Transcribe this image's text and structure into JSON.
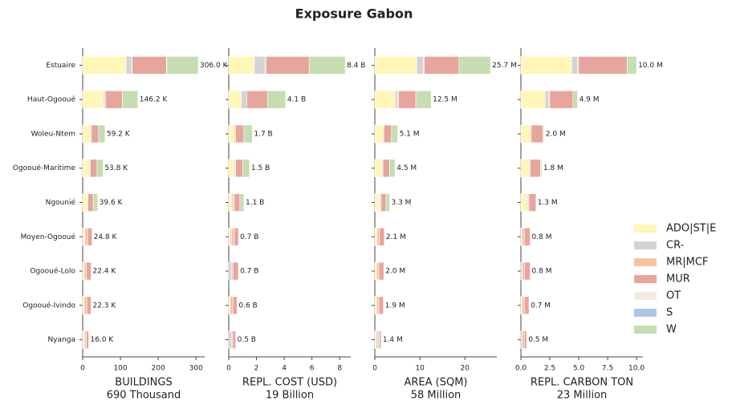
{
  "chart_data": {
    "type": "bar",
    "title": "Exposure Gabon",
    "legend": "right",
    "categories": [
      "Estuaire",
      "Haut-Ogooué",
      "Woleu-Ntem",
      "Ogooué-Maritime",
      "Ngounié",
      "Moyen-Ogooué",
      "Ogooué-Lolo",
      "Ogooué-Ivindo",
      "Nyanga"
    ],
    "series": [
      {
        "name": "ADO|ST|E",
        "color": "#fff6b8"
      },
      {
        "name": "CR-",
        "color": "#d1d3d6"
      },
      {
        "name": "MR|MCF",
        "color": "#f6c3a0"
      },
      {
        "name": "MUR",
        "color": "#e6a59d"
      },
      {
        "name": "OT",
        "color": "#f2ebdf"
      },
      {
        "name": "S",
        "color": "#b0c4e6"
      },
      {
        "name": "W",
        "color": "#c6ddb1"
      }
    ],
    "panels": [
      {
        "xlabel": "BUILDINGS",
        "xlabel_sub": "690 Thousand",
        "xlim": [
          0,
          323
        ],
        "xticks": [
          0,
          100,
          200,
          300
        ],
        "values": [
          306.0,
          146.2,
          59.2,
          53.8,
          39.6,
          24.8,
          22.4,
          22.3,
          16.0
        ],
        "value_labels": [
          "306.0 K",
          "146.2 K",
          "59.2 K",
          "53.8 K",
          "39.6 K",
          "24.8 K",
          "22.4 K",
          "22.3 K",
          "16.0 K"
        ],
        "series": [
          {
            "values": [
              115,
              55,
              21,
              18,
              12,
              5,
              4,
              4,
              3
            ]
          },
          {
            "values": [
              15,
              3,
              0,
              2,
              0,
              1,
              0,
              0,
              3
            ]
          },
          {
            "values": [
              1,
              2,
              2,
              0,
              2,
              7,
              6,
              7,
              4
            ]
          },
          {
            "values": [
              91,
              45,
              19,
              18,
              14,
              11.8,
              12.4,
              11.3,
              6
            ]
          },
          {
            "values": [
              1,
              0,
              0,
              0,
              0,
              0,
              0,
              0,
              0
            ]
          },
          {
            "values": [
              0,
              0,
              0,
              0,
              0,
              0,
              0,
              0,
              0
            ]
          },
          {
            "values": [
              83,
              41.2,
              17.2,
              15.8,
              11.6,
              0,
              0,
              0,
              0
            ]
          }
        ]
      },
      {
        "xlabel": "REPL. COST (USD)",
        "xlabel_sub": "19 Billion",
        "xlim": [
          0,
          8.8
        ],
        "xticks": [
          0,
          2,
          4,
          6,
          8
        ],
        "values": [
          8.4,
          4.1,
          1.7,
          1.5,
          1.1,
          0.7,
          0.7,
          0.6,
          0.5
        ],
        "value_labels": [
          "8.4 B",
          "4.1 B",
          "1.7 B",
          "1.5 B",
          "1.1 B",
          "0.7 B",
          "0.7 B",
          "0.6 B",
          "0.5 B"
        ],
        "series": [
          {
            "values": [
              1.85,
              0.9,
              0.4,
              0.4,
              0.2,
              0.1,
              0,
              0.1,
              0
            ]
          },
          {
            "values": [
              0.75,
              0.4,
              0,
              0.1,
              0.1,
              0.1,
              0.2,
              0,
              0.2
            ]
          },
          {
            "values": [
              0.1,
              0,
              0.1,
              0,
              0.1,
              0.2,
              0.1,
              0.2,
              0.1
            ]
          },
          {
            "values": [
              3.1,
              1.5,
              0.6,
              0.5,
              0.4,
              0.3,
              0.4,
              0.3,
              0.2
            ]
          },
          {
            "values": [
              0,
              0,
              0,
              0,
              0,
              0,
              0,
              0,
              0
            ]
          },
          {
            "values": [
              0,
              0,
              0,
              0,
              0,
              0,
              0,
              0,
              0
            ]
          },
          {
            "values": [
              2.6,
              1.3,
              0.6,
              0.5,
              0.3,
              0,
              0,
              0,
              0
            ]
          }
        ]
      },
      {
        "xlabel": "AREA (SQM)",
        "xlabel_sub": "58 Million",
        "xlim": [
          0,
          27.1
        ],
        "xticks": [
          0,
          10,
          20
        ],
        "values": [
          25.7,
          12.5,
          5.1,
          4.5,
          3.3,
          2.1,
          2.0,
          1.9,
          1.4
        ],
        "value_labels": [
          "25.7 M",
          "12.5 M",
          "5.1 M",
          "4.5 M",
          "3.3 M",
          "2.1 M",
          "2.0 M",
          "1.9 M",
          "1.4 M"
        ],
        "series": [
          {
            "values": [
              9.3,
              4.5,
              1.8,
              1.6,
              1.0,
              0.5,
              0.4,
              0.4,
              0.3
            ]
          },
          {
            "values": [
              1.5,
              0.5,
              0,
              0.2,
              0.2,
              0,
              0,
              0,
              0.4
            ]
          },
          {
            "values": [
              0.2,
              0.3,
              0.2,
              0,
              0.2,
              0.5,
              0.5,
              0.5,
              0.3
            ]
          },
          {
            "values": [
              7.7,
              3.8,
              1.7,
              1.5,
              1.1,
              1.1,
              1.1,
              1.0,
              0.4
            ]
          },
          {
            "values": [
              0,
              0,
              0,
              0,
              0,
              0,
              0,
              0,
              0
            ]
          },
          {
            "values": [
              0,
              0,
              0,
              0,
              0,
              0,
              0,
              0,
              0
            ]
          },
          {
            "values": [
              7.0,
              3.4,
              1.4,
              1.2,
              0.8,
              0,
              0,
              0,
              0
            ]
          }
        ]
      },
      {
        "xlabel": "REPL. CARBON TON",
        "xlabel_sub": "23 Million",
        "xlim": [
          0,
          10.55
        ],
        "xticks": [
          {
            "value": 0,
            "label": "0.0"
          },
          {
            "value": 2.5,
            "label": "2.5"
          },
          {
            "value": 5,
            "label": "5.0"
          },
          {
            "value": 7.5,
            "label": "7.5"
          },
          {
            "value": 10,
            "label": "10.0"
          }
        ],
        "values": [
          10.0,
          4.9,
          2.0,
          1.8,
          1.3,
          0.8,
          0.8,
          0.7,
          0.5
        ],
        "value_labels": [
          "10.0 M",
          "4.9 M",
          "2.0 M",
          "1.8 M",
          "1.3 M",
          "0.8 M",
          "0.8 M",
          "0.7 M",
          "0.5 M"
        ],
        "series": [
          {
            "values": [
              4.4,
              2.1,
              0.8,
              0.7,
              0.5,
              0.1,
              0,
              0.1,
              0
            ]
          },
          {
            "values": [
              0.5,
              0.3,
              0,
              0.1,
              0.1,
              0,
              0.1,
              0,
              0.1
            ]
          },
          {
            "values": [
              0.1,
              0.1,
              0.1,
              0,
              0.1,
              0.2,
              0.2,
              0.2,
              0.2
            ]
          },
          {
            "values": [
              4.2,
              2.0,
              1.0,
              0.9,
              0.6,
              0.5,
              0.5,
              0.4,
              0.2
            ]
          },
          {
            "values": [
              0,
              0,
              0,
              0,
              0,
              0,
              0,
              0,
              0
            ]
          },
          {
            "values": [
              0,
              0,
              0,
              0,
              0,
              0,
              0,
              0,
              0
            ]
          },
          {
            "values": [
              0.8,
              0.4,
              0.1,
              0.1,
              0,
              0,
              0,
              0,
              0
            ]
          }
        ]
      }
    ]
  }
}
